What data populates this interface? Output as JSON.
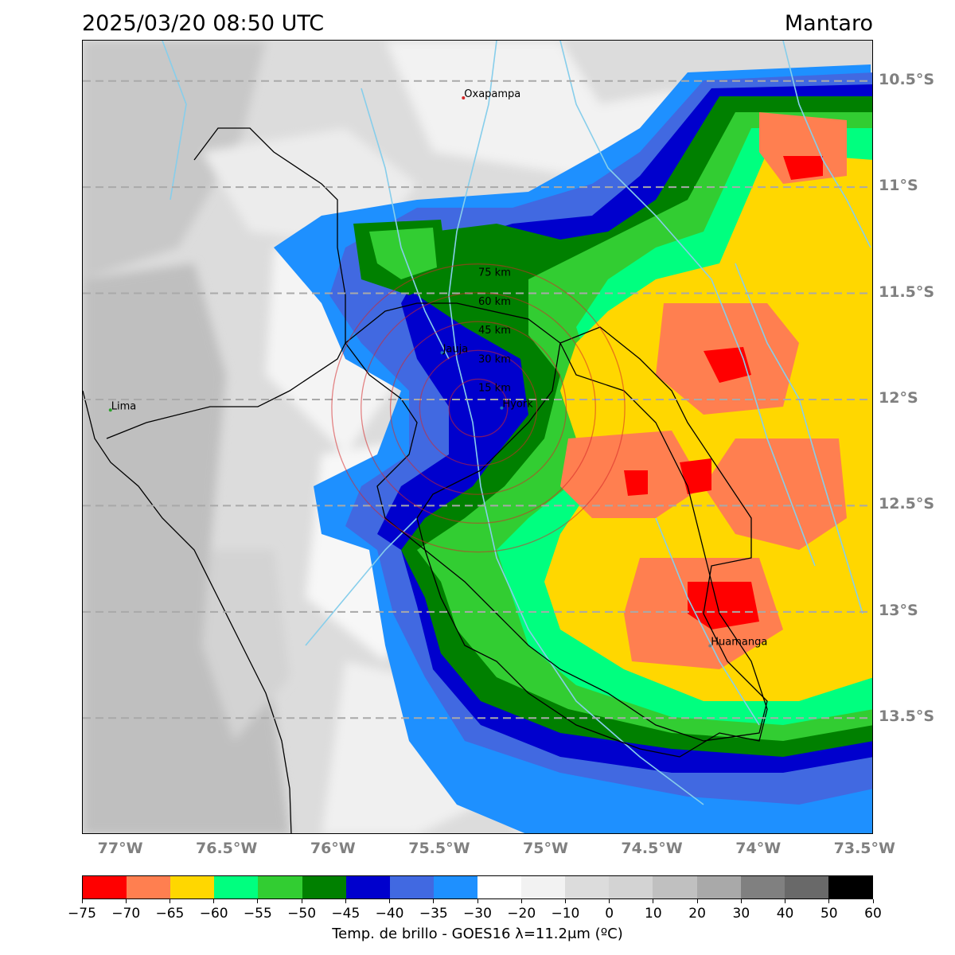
{
  "header": {
    "timestamp": "2025/03/20 08:50 UTC",
    "region": "Mantaro"
  },
  "map": {
    "lat_labels": [
      "10.5°S",
      "11°S",
      "11.5°S",
      "12°S",
      "12.5°S",
      "13°S",
      "13.5°S"
    ],
    "lat_values": [
      -10.5,
      -11.0,
      -11.5,
      -12.0,
      -12.5,
      -13.0,
      -13.5
    ],
    "lon_labels": [
      "77°W",
      "76.5°W",
      "76°W",
      "75.5°W",
      "75°W",
      "74.5°W",
      "74°W",
      "73.5°W"
    ],
    "lon_values": [
      -77.0,
      -76.5,
      -76.0,
      -75.5,
      -75.0,
      -74.5,
      -74.0,
      -73.5
    ],
    "extent": {
      "lon_min": -77.18,
      "lon_max": -73.46,
      "lat_max": -10.31,
      "lat_min": -14.05
    },
    "cities": [
      {
        "name": "Oxapampa",
        "lon": -75.39,
        "lat": -10.58,
        "color": "#d62728"
      },
      {
        "name": "Jauja",
        "lon": -75.49,
        "lat": -11.78,
        "color": "#1f77b4"
      },
      {
        "name": "Hyork",
        "lon": -75.21,
        "lat": -12.04,
        "color": "#1f77b4"
      },
      {
        "name": "Lima",
        "lon": -77.05,
        "lat": -12.05,
        "color": "#2ca02c"
      },
      {
        "name": "Huamanga",
        "lon": -74.23,
        "lat": -13.16,
        "color": "#7f7f7f"
      }
    ],
    "radar_center": {
      "lon": -75.32,
      "lat": -12.04
    },
    "rings": [
      {
        "label": "15 km",
        "radius_km": 15
      },
      {
        "label": "30 km",
        "radius_km": 30
      },
      {
        "label": "45 km",
        "radius_km": 45
      },
      {
        "label": "60 km",
        "radius_km": 60
      },
      {
        "label": "75 km",
        "radius_km": 75
      }
    ]
  },
  "colorbar": {
    "ticks": [
      "−75",
      "−70",
      "−65",
      "−60",
      "−55",
      "−50",
      "−45",
      "−40",
      "−35",
      "−30",
      "−20",
      "−10",
      "0",
      "10",
      "20",
      "30",
      "40",
      "50",
      "60"
    ],
    "colors": [
      "#ff0000",
      "#ff7f50",
      "#ffd700",
      "#00ff7f",
      "#32cd32",
      "#008000",
      "#0000cd",
      "#4169e1",
      "#1e90ff",
      "#ffffff",
      "#f2f2f2",
      "#dcdcdc",
      "#d3d3d3",
      "#c0c0c0",
      "#a9a9a9",
      "#808080",
      "#696969",
      "#000000"
    ],
    "label": "Temp. de brillo - GOES16 λ=11.2μm (ºC)"
  }
}
